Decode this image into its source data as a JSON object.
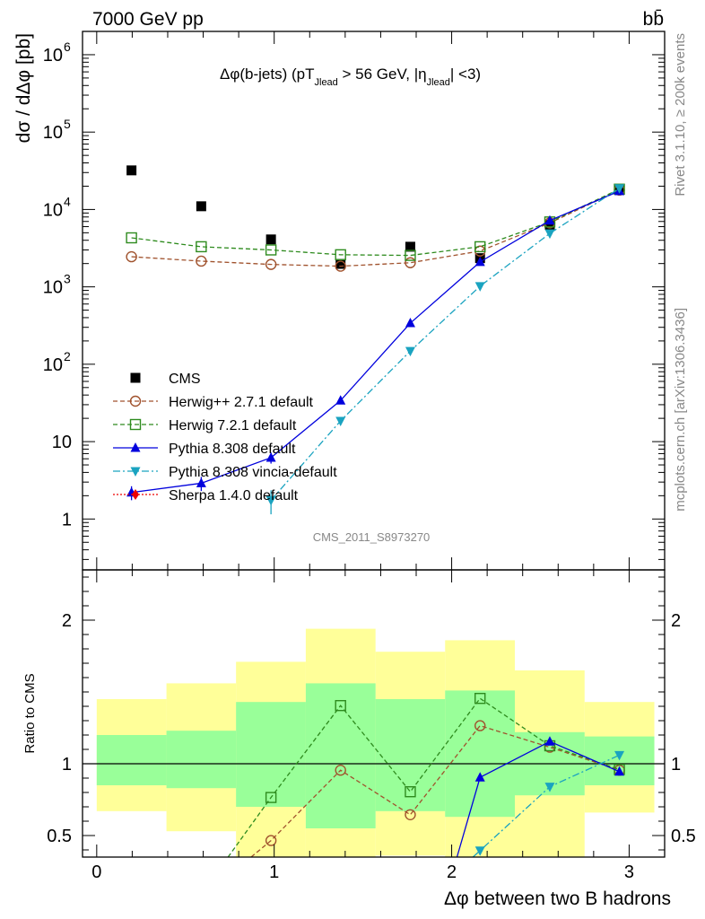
{
  "header": {
    "left": "7000 GeV pp",
    "right": "bb̄"
  },
  "side_labels": {
    "rivet": "Rivet 3.1.10, ≥ 200k events",
    "mcplots": "mcplots.cern.ch [arXiv:1306.3436]"
  },
  "analysis_id": "CMS_2011_S8973270",
  "colors": {
    "cms": "#000000",
    "herwigpp": "#a0522d",
    "herwig7": "#2e8b1e",
    "pythia": "#0000dd",
    "vincia": "#1aa3c0",
    "sherpa": "#ee0000",
    "band_outer": "#ffff99",
    "band_inner": "#99ff99"
  },
  "chart_data": [
    {
      "type": "scatter",
      "panel": "main",
      "title": "Δφ(b-jets) (pT_Jlead > 56 GeV, |η_Jlead| <3)",
      "title_parts": {
        "p1": "Δφ(b-jets) (pT",
        "sub1": "Jlead",
        "p2": " >  56 GeV, |η",
        "sub2": "Jlead",
        "p3": "| <3)"
      },
      "ylabel": "dσ / dΔφ [pb]",
      "yscale": "log",
      "xlim": [
        -0.08,
        3.2
      ],
      "ylim": [
        0.22,
        2000000
      ],
      "ytick_labels": [
        {
          "v": 1,
          "label": "1"
        },
        {
          "v": 10,
          "label": "10"
        },
        {
          "v": 100,
          "label": "10",
          "exp": "2"
        },
        {
          "v": 1000,
          "label": "10",
          "exp": "3"
        },
        {
          "v": 10000,
          "label": "10",
          "exp": "4"
        },
        {
          "v": 100000,
          "label": "10",
          "exp": "5"
        },
        {
          "v": 1000000,
          "label": "10",
          "exp": "6"
        }
      ],
      "legend": [
        "CMS",
        "Herwig++ 2.7.1 default",
        "Herwig 7.2.1 default",
        "Pythia 8.308 default",
        "Pythia 8.308 vincia-default",
        "Sherpa 1.4.0 default"
      ],
      "legend_position": "left-middle",
      "series": [
        {
          "name": "CMS",
          "x": [
            0.196,
            0.589,
            0.982,
            1.374,
            1.767,
            2.16,
            2.553,
            2.945
          ],
          "y": [
            32000,
            11000,
            4100,
            1980,
            3300,
            2350,
            6300,
            17800
          ]
        },
        {
          "name": "Herwig++ 2.7.1 default",
          "x": [
            0.196,
            0.589,
            0.982,
            1.374,
            1.767,
            2.16,
            2.553,
            2.945
          ],
          "y": [
            2450,
            2150,
            1950,
            1850,
            2050,
            2900,
            6700,
            17800
          ]
        },
        {
          "name": "Herwig 7.2.1 default",
          "x": [
            0.196,
            0.589,
            0.982,
            1.374,
            1.767,
            2.16,
            2.553,
            2.945
          ],
          "y": [
            4300,
            3300,
            3000,
            2600,
            2550,
            3300,
            6900,
            18300
          ]
        },
        {
          "name": "Pythia 8.308 default",
          "x": [
            0.196,
            0.589,
            0.982,
            1.374,
            1.767,
            2.16,
            2.553,
            2.945
          ],
          "y": [
            2.2,
            2.9,
            6.2,
            34,
            340,
            2100,
            7200,
            17300
          ],
          "yerr": [
            0.45,
            0.6,
            1.0,
            0,
            0,
            0,
            0,
            0
          ]
        },
        {
          "name": "Pythia 8.308 vincia-default",
          "x": [
            0.982,
            1.374,
            1.767,
            2.16,
            2.553,
            2.945
          ],
          "y": [
            1.75,
            18.5,
            148,
            1020,
            4900,
            18800
          ],
          "yerr": [
            0.6,
            0,
            0,
            0,
            0,
            0
          ]
        }
      ]
    },
    {
      "type": "line",
      "panel": "ratio",
      "ylabel": "Ratio to CMS",
      "xlabel": "Δφ between two B hadrons",
      "xlim": [
        -0.08,
        3.2
      ],
      "ylim": [
        0.35,
        2.35
      ],
      "xtick_labels": [
        {
          "v": 0,
          "label": "0"
        },
        {
          "v": 1,
          "label": "1"
        },
        {
          "v": 2,
          "label": "2"
        },
        {
          "v": 3,
          "label": "3"
        }
      ],
      "ytick_labels": [
        {
          "v": 0.5,
          "label": "0.5"
        },
        {
          "v": 1,
          "label": "1"
        },
        {
          "v": 2,
          "label": "2"
        }
      ],
      "bins": [
        0,
        0.393,
        0.785,
        1.178,
        1.571,
        1.963,
        2.356,
        2.749,
        3.142
      ],
      "band_outer": [
        [
          0.67,
          1.45
        ],
        [
          0.53,
          1.56
        ],
        [
          0.3,
          1.71
        ],
        [
          0.34,
          1.94
        ],
        [
          0.36,
          1.78
        ],
        [
          0.3,
          1.86
        ],
        [
          0.35,
          1.65
        ],
        [
          0.66,
          1.43
        ]
      ],
      "band_inner": [
        [
          0.85,
          1.2
        ],
        [
          0.83,
          1.23
        ],
        [
          0.7,
          1.43
        ],
        [
          0.55,
          1.56
        ],
        [
          0.67,
          1.45
        ],
        [
          0.63,
          1.51
        ],
        [
          0.78,
          1.22
        ],
        [
          0.85,
          1.19
        ]
      ],
      "series": [
        {
          "name": "Herwig++ 2.7.1 default",
          "x": [
            0.982,
            1.374,
            1.767,
            2.16,
            2.553,
            2.945
          ],
          "y": [
            0.465,
            0.955,
            0.645,
            1.265,
            1.115,
            0.955
          ],
          "extend_left": [
            0.87,
            0.35
          ]
        },
        {
          "name": "Herwig 7.2.1 default",
          "x": [
            0.982,
            1.374,
            1.767,
            2.16,
            2.553,
            2.945
          ],
          "y": [
            0.765,
            1.405,
            0.805,
            1.455,
            1.125,
            0.96
          ],
          "extend_left": [
            0.74,
            0.35
          ]
        },
        {
          "name": "Pythia 8.308 default",
          "x": [
            2.16,
            2.553,
            2.945
          ],
          "y": [
            0.905,
            1.155,
            0.945
          ],
          "extend_left": [
            2.03,
            0.35
          ]
        },
        {
          "name": "Pythia 8.308 vincia-default",
          "x": [
            2.16,
            2.553,
            2.945
          ],
          "y": [
            0.395,
            0.84,
            1.06
          ],
          "extend_left": [
            2.12,
            0.35
          ]
        }
      ]
    }
  ]
}
